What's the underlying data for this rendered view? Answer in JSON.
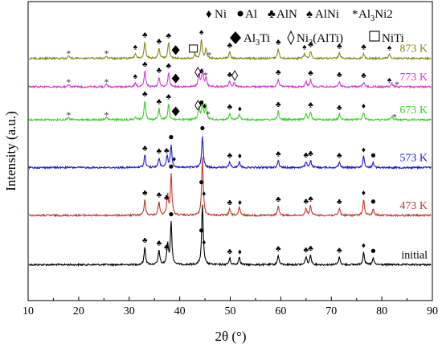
{
  "chart_data": {
    "type": "line",
    "xlabel": "2θ (°)",
    "ylabel": "Intensity (a.u.)",
    "xlim": [
      10,
      90
    ],
    "xticks": [
      "10",
      "20",
      "30",
      "40",
      "50",
      "60",
      "70",
      "80",
      "90"
    ],
    "grid": false,
    "legend_position": "top-right",
    "legend": {
      "row1": [
        {
          "symbol": "♦",
          "label": "Ni"
        },
        {
          "symbol": "●",
          "label": "Al"
        },
        {
          "symbol": "♣",
          "label": "AlN"
        },
        {
          "symbol": "♠",
          "label": "AlNi"
        },
        {
          "symbol": "*",
          "label": "Al3Ni2"
        }
      ],
      "row2": [
        {
          "symbol": "◆",
          "label": "Al3Ti"
        },
        {
          "symbol": "◊",
          "label": "Ni3(AlTi)"
        },
        {
          "symbol": "□",
          "label": "NiTi"
        }
      ]
    },
    "series": [
      {
        "name": "initial",
        "color": "#000000",
        "baseline": 0.12,
        "peaks": [
          [
            33.1,
            22
          ],
          [
            35.9,
            18
          ],
          [
            37.6,
            26
          ],
          [
            38.3,
            52
          ],
          [
            44.5,
            75
          ],
          [
            49.9,
            8
          ],
          [
            51.8,
            10
          ],
          [
            59.5,
            12
          ],
          [
            65.0,
            10
          ],
          [
            65.9,
            12
          ],
          [
            71.6,
            10
          ],
          [
            76.4,
            16
          ],
          [
            78.3,
            8
          ]
        ],
        "markers": [
          {
            "x": 33.1,
            "s": "club"
          },
          {
            "x": 35.9,
            "s": "club"
          },
          {
            "x": 37.4,
            "s": "club"
          },
          {
            "x": 38.3,
            "s": "dot"
          },
          {
            "x": 44.3,
            "s": "dot"
          },
          {
            "x": 44.8,
            "s": "diamond"
          },
          {
            "x": 49.9,
            "s": "club"
          },
          {
            "x": 51.9,
            "s": "diamond"
          },
          {
            "x": 59.5,
            "s": "club"
          },
          {
            "x": 65.0,
            "s": "club"
          },
          {
            "x": 65.9,
            "s": "club"
          },
          {
            "x": 71.6,
            "s": "club"
          },
          {
            "x": 76.4,
            "s": "diamond"
          },
          {
            "x": 78.3,
            "s": "dot"
          }
        ]
      },
      {
        "name": "473 K",
        "color": "#c0392b",
        "baseline": 0.285,
        "peaks": [
          [
            33.1,
            20
          ],
          [
            35.9,
            17
          ],
          [
            37.6,
            26
          ],
          [
            38.3,
            50
          ],
          [
            44.5,
            72
          ],
          [
            49.9,
            8
          ],
          [
            51.8,
            10
          ],
          [
            59.5,
            12
          ],
          [
            65.0,
            9
          ],
          [
            65.9,
            12
          ],
          [
            71.6,
            9
          ],
          [
            76.4,
            20
          ],
          [
            78.3,
            8
          ]
        ],
        "markers": [
          {
            "x": 33.1,
            "s": "club"
          },
          {
            "x": 35.9,
            "s": "club"
          },
          {
            "x": 37.4,
            "s": "club"
          },
          {
            "x": 38.3,
            "s": "dot"
          },
          {
            "x": 44.3,
            "s": "dot"
          },
          {
            "x": 44.8,
            "s": "diamond"
          },
          {
            "x": 49.9,
            "s": "club"
          },
          {
            "x": 51.9,
            "s": "diamond"
          },
          {
            "x": 59.5,
            "s": "club"
          },
          {
            "x": 65.0,
            "s": "club"
          },
          {
            "x": 65.9,
            "s": "club"
          },
          {
            "x": 71.6,
            "s": "club"
          },
          {
            "x": 76.4,
            "s": "diamond"
          },
          {
            "x": 78.3,
            "s": "dot"
          }
        ]
      },
      {
        "name": "573 K",
        "color": "#1a1adb",
        "baseline": 0.445,
        "peaks": [
          [
            33.1,
            16
          ],
          [
            35.9,
            12
          ],
          [
            37.5,
            15
          ],
          [
            38.3,
            28
          ],
          [
            44.5,
            40
          ],
          [
            49.9,
            7
          ],
          [
            51.8,
            8
          ],
          [
            59.5,
            9
          ],
          [
            65.0,
            7
          ],
          [
            65.9,
            9
          ],
          [
            71.6,
            7
          ],
          [
            76.4,
            14
          ],
          [
            78.3,
            6
          ]
        ],
        "markers": [
          {
            "x": 33.1,
            "s": "club"
          },
          {
            "x": 35.9,
            "s": "club"
          },
          {
            "x": 37.4,
            "s": "club"
          },
          {
            "x": 38.3,
            "s": "dot"
          },
          {
            "x": 38.9,
            "s": "diamond"
          },
          {
            "x": 44.5,
            "s": "dot"
          },
          {
            "x": 49.9,
            "s": "club"
          },
          {
            "x": 51.9,
            "s": "diamond"
          },
          {
            "x": 59.5,
            "s": "club"
          },
          {
            "x": 65.0,
            "s": "club"
          },
          {
            "x": 65.9,
            "s": "club"
          },
          {
            "x": 71.6,
            "s": "club"
          },
          {
            "x": 76.4,
            "s": "diamond"
          },
          {
            "x": 78.3,
            "s": "dot"
          }
        ]
      },
      {
        "name": "673 K",
        "color": "#3ecf2a",
        "baseline": 0.605,
        "peaks": [
          [
            18.0,
            3
          ],
          [
            25.5,
            3
          ],
          [
            31.2,
            4
          ],
          [
            33.1,
            24
          ],
          [
            35.9,
            14
          ],
          [
            37.8,
            20
          ],
          [
            43.8,
            15
          ],
          [
            44.5,
            22
          ],
          [
            45.2,
            18
          ],
          [
            49.9,
            8
          ],
          [
            51.8,
            7
          ],
          [
            59.5,
            11
          ],
          [
            65.0,
            7
          ],
          [
            65.9,
            10
          ],
          [
            71.6,
            7
          ],
          [
            76.4,
            9
          ],
          [
            82.0,
            4
          ]
        ],
        "markers": [
          {
            "x": 18.0,
            "s": "star"
          },
          {
            "x": 25.5,
            "s": "star"
          },
          {
            "x": 33.1,
            "s": "club"
          },
          {
            "x": 35.9,
            "s": "club"
          },
          {
            "x": 37.8,
            "s": "club"
          },
          {
            "x": 39.2,
            "s": "bdiamond"
          },
          {
            "x": 43.6,
            "s": "ldiamond"
          },
          {
            "x": 44.3,
            "s": "dot"
          },
          {
            "x": 44.9,
            "s": "diamond"
          },
          {
            "x": 45.6,
            "s": "star"
          },
          {
            "x": 49.9,
            "s": "club"
          },
          {
            "x": 51.9,
            "s": "diamond"
          },
          {
            "x": 59.5,
            "s": "club"
          },
          {
            "x": 65.9,
            "s": "club"
          },
          {
            "x": 71.6,
            "s": "club"
          },
          {
            "x": 76.4,
            "s": "diamond"
          },
          {
            "x": 82.5,
            "s": "star"
          }
        ]
      },
      {
        "name": "773 K",
        "color": "#d63bd1",
        "baseline": 0.715,
        "peaks": [
          [
            18.0,
            3
          ],
          [
            25.5,
            3
          ],
          [
            31.2,
            5
          ],
          [
            33.1,
            20
          ],
          [
            35.9,
            12
          ],
          [
            37.8,
            18
          ],
          [
            43.8,
            16
          ],
          [
            44.5,
            22
          ],
          [
            45.2,
            12
          ],
          [
            49.9,
            7
          ],
          [
            50.8,
            5
          ],
          [
            59.5,
            10
          ],
          [
            65.0,
            6
          ],
          [
            65.9,
            9
          ],
          [
            71.6,
            7
          ],
          [
            76.4,
            6
          ],
          [
            82.0,
            4
          ]
        ],
        "markers": [
          {
            "x": 18.0,
            "s": "star"
          },
          {
            "x": 25.5,
            "s": "star"
          },
          {
            "x": 31.2,
            "s": "spade"
          },
          {
            "x": 33.1,
            "s": "club"
          },
          {
            "x": 35.9,
            "s": "club"
          },
          {
            "x": 37.8,
            "s": "club"
          },
          {
            "x": 39.2,
            "s": "bdiamond"
          },
          {
            "x": 43.6,
            "s": "ldiamond"
          },
          {
            "x": 44.3,
            "s": "spade"
          },
          {
            "x": 45.1,
            "s": "star"
          },
          {
            "x": 49.9,
            "s": "club"
          },
          {
            "x": 50.9,
            "s": "ldiamond"
          },
          {
            "x": 59.5,
            "s": "club"
          },
          {
            "x": 65.9,
            "s": "club"
          },
          {
            "x": 71.6,
            "s": "club"
          },
          {
            "x": 76.4,
            "s": "club"
          },
          {
            "x": 81.5,
            "s": "spade"
          },
          {
            "x": 83.0,
            "s": "star"
          }
        ]
      },
      {
        "name": "873 K",
        "color": "#8a8a1c",
        "baseline": 0.81,
        "peaks": [
          [
            18.0,
            3
          ],
          [
            25.5,
            3
          ],
          [
            31.2,
            6
          ],
          [
            33.1,
            21
          ],
          [
            35.9,
            13
          ],
          [
            37.8,
            20
          ],
          [
            43.0,
            5
          ],
          [
            44.3,
            24
          ],
          [
            45.2,
            12
          ],
          [
            49.9,
            8
          ],
          [
            59.5,
            12
          ],
          [
            64.7,
            6
          ],
          [
            65.9,
            9
          ],
          [
            71.6,
            7
          ],
          [
            76.4,
            6
          ],
          [
            81.5,
            5
          ]
        ],
        "markers": [
          {
            "x": 18.0,
            "s": "star"
          },
          {
            "x": 25.5,
            "s": "star"
          },
          {
            "x": 31.2,
            "s": "spade"
          },
          {
            "x": 33.1,
            "s": "club"
          },
          {
            "x": 35.9,
            "s": "club"
          },
          {
            "x": 37.8,
            "s": "club"
          },
          {
            "x": 39.2,
            "s": "bdiamond"
          },
          {
            "x": 42.7,
            "s": "square"
          },
          {
            "x": 44.3,
            "s": "spade"
          },
          {
            "x": 45.8,
            "s": "star"
          },
          {
            "x": 49.9,
            "s": "club"
          },
          {
            "x": 59.5,
            "s": "club"
          },
          {
            "x": 64.7,
            "s": "spade"
          },
          {
            "x": 65.9,
            "s": "club"
          },
          {
            "x": 71.6,
            "s": "club"
          },
          {
            "x": 76.4,
            "s": "club"
          },
          {
            "x": 81.5,
            "s": "spade"
          }
        ]
      }
    ]
  }
}
